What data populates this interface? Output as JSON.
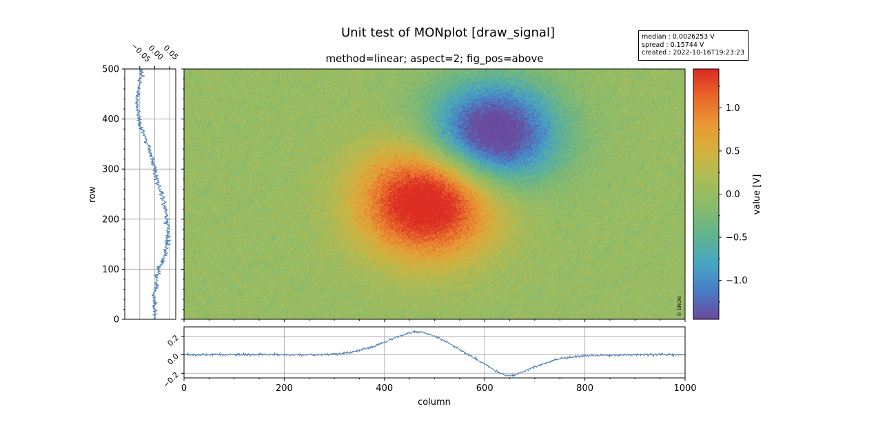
{
  "figure": {
    "suptitle": "Unit test of MONplot [draw_signal]",
    "title": "method=linear; aspect=2; fig_pos=above",
    "copyright": "© SRON",
    "info": {
      "median": "median : 0.0026253 V",
      "spread": "spread : 0.15744 V",
      "created": "created : 2022-10-16T19:23:23"
    }
  },
  "chart_data": [
    {
      "type": "heatmap",
      "name": "image",
      "xlabel": "",
      "ylabel": "row",
      "xlim": [
        0,
        1000
      ],
      "ylim": [
        0,
        500
      ],
      "y_ticks": [
        0,
        100,
        200,
        300,
        400,
        500
      ],
      "features": [
        {
          "kind": "positive blob",
          "center": [
            485,
            235
          ],
          "peak": 1.45
        },
        {
          "kind": "negative blob",
          "center": [
            615,
            370
          ],
          "peak": -1.45
        }
      ],
      "noise_level": 0.15
    },
    {
      "type": "heatmap",
      "name": "colorbar",
      "label": "value [V]",
      "vmin": -1.45,
      "vmax": 1.45,
      "ticks": [
        -1.0,
        -0.5,
        0.0,
        0.5,
        1.0
      ],
      "tick_labels": [
        "−1.0",
        "−0.5",
        "0.0",
        "0.5",
        "1.0"
      ],
      "colors": [
        "#6b4a9d",
        "#4a7cc6",
        "#46a6c4",
        "#62b38e",
        "#86bb6d",
        "#a8bd5a",
        "#d4b33e",
        "#e99a35",
        "#e8682b",
        "#dc2c23"
      ]
    },
    {
      "type": "line",
      "name": "row-profile",
      "xlim": [
        -0.1,
        0.07
      ],
      "x_ticks": [
        -0.05,
        0.0,
        0.05
      ],
      "x_tick_labels": [
        "−0.05",
        "0.00",
        "0.05"
      ],
      "ylim": [
        0,
        500
      ],
      "color": "#4a7eb5",
      "grid": true,
      "y": [
        0,
        25,
        50,
        75,
        100,
        125,
        150,
        175,
        200,
        225,
        250,
        275,
        300,
        325,
        350,
        375,
        400,
        425,
        450,
        475,
        500
      ],
      "x": [
        0.0,
        0.0,
        0.0,
        0.005,
        0.01,
        0.032,
        0.04,
        0.043,
        0.042,
        0.035,
        0.02,
        0.01,
        0.0,
        -0.012,
        -0.025,
        -0.04,
        -0.053,
        -0.06,
        -0.058,
        -0.05,
        -0.045
      ]
    },
    {
      "type": "line",
      "name": "column-profile",
      "xlabel": "column",
      "xlim": [
        0,
        1000
      ],
      "x_ticks": [
        0,
        200,
        400,
        600,
        800,
        1000
      ],
      "ylim": [
        -0.25,
        0.3
      ],
      "y_ticks": [
        -0.2,
        0.0,
        0.2
      ],
      "y_tick_labels": [
        "−0.2",
        "0.0",
        "0.2"
      ],
      "color": "#4a7eb5",
      "grid": true,
      "x": [
        0,
        100,
        200,
        280,
        330,
        380,
        420,
        460,
        480,
        500,
        540,
        580,
        600,
        620,
        640,
        660,
        700,
        750,
        800,
        900,
        1000
      ],
      "y": [
        0.0,
        0.0,
        0.0,
        0.0,
        0.02,
        0.09,
        0.18,
        0.25,
        0.24,
        0.2,
        0.09,
        -0.04,
        -0.1,
        -0.17,
        -0.22,
        -0.22,
        -0.13,
        -0.04,
        -0.01,
        0.0,
        0.0
      ]
    }
  ]
}
